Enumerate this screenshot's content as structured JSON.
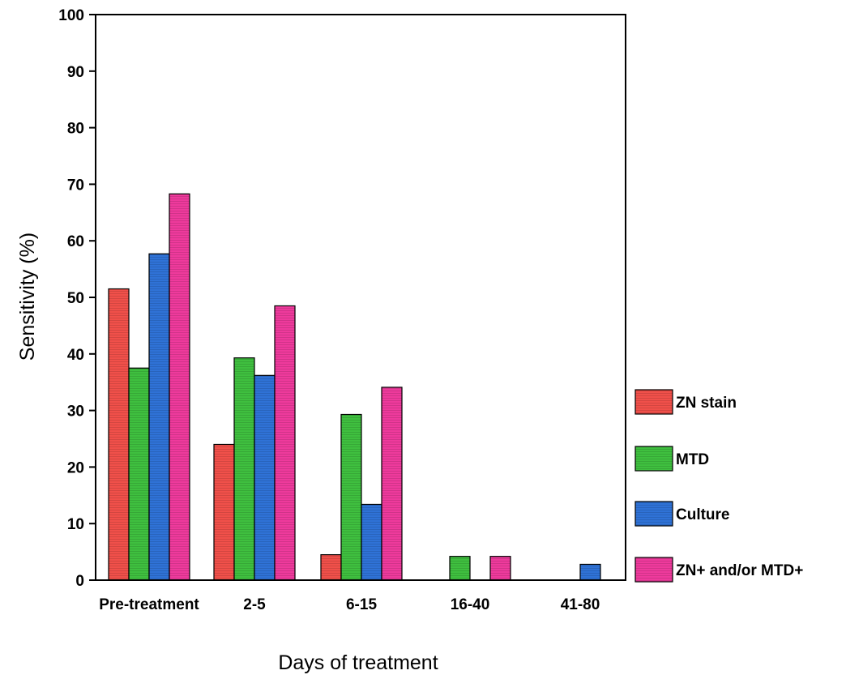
{
  "chart_data": {
    "type": "bar",
    "title": "",
    "xlabel": "Days of treatment",
    "ylabel": "Sensitivity (%)",
    "ylim": [
      0,
      100
    ],
    "yticks": [
      0,
      10,
      20,
      30,
      40,
      50,
      60,
      70,
      80,
      90,
      100
    ],
    "categories": [
      "Pre-treatment",
      "2-5",
      "6-15",
      "16-40",
      "41-80"
    ],
    "series": [
      {
        "name": "ZN stain",
        "color": "#f0504a",
        "values": [
          51.5,
          24,
          4.5,
          0,
          0
        ]
      },
      {
        "name": "MTD",
        "color": "#3fbf3f",
        "values": [
          37.5,
          39.3,
          29.3,
          4.2,
          0
        ]
      },
      {
        "name": "Culture",
        "color": "#2f72d6",
        "values": [
          57.7,
          36.2,
          13.4,
          0,
          2.8
        ]
      },
      {
        "name": "ZN+ and/or MTD+",
        "color": "#ee3a9c",
        "values": [
          68.3,
          48.5,
          34.1,
          4.2,
          0
        ]
      }
    ],
    "grid": false,
    "legend_position": "right"
  }
}
